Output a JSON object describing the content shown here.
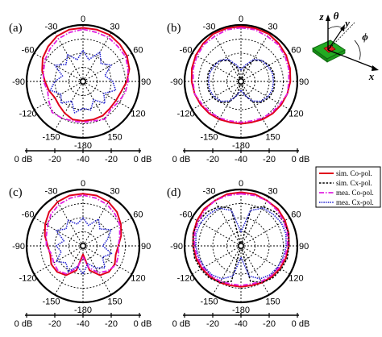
{
  "colors": {
    "sim_co": "#e0001b",
    "sim_cx": "#000000",
    "mea_co": "#e020e0",
    "mea_cx": "#2020d0",
    "chip_green": "#22aa22",
    "chip_red": "#dd2222"
  },
  "legend": {
    "items": [
      {
        "key": "sim_co",
        "label": "sim. Co-pol."
      },
      {
        "key": "sim_cx",
        "label": "sim. Cx-pol."
      },
      {
        "key": "mea_co",
        "label": "mea. Co-pol."
      },
      {
        "key": "mea_cx",
        "label": "mea. Cx-pol."
      }
    ]
  },
  "inset": {
    "z": "z",
    "theta": "θ",
    "y": "y",
    "phi": "ϕ",
    "x": "x"
  },
  "chart_data": [
    {
      "type": "polar",
      "panel_label": "(a)",
      "angle_labels": [
        "0",
        "30",
        "60",
        "90",
        "120",
        "150",
        "-180",
        "-150",
        "-120",
        "-90",
        "-60",
        "-30"
      ],
      "radial_labels": [
        "0 dB",
        "-20",
        "-40",
        "-20",
        "0 dB"
      ],
      "rlim": [
        -40,
        0
      ],
      "grid": true,
      "series": [
        {
          "key": "sim_co",
          "theta": [
            0,
            15,
            30,
            45,
            60,
            75,
            90,
            105,
            120,
            135,
            150,
            165,
            180,
            -165,
            -150,
            -135,
            -120,
            -105,
            -90,
            -75,
            -60,
            -45,
            -30,
            -15
          ],
          "r_db": [
            -2,
            -2,
            -2,
            -3,
            -4,
            -6,
            -9,
            -12,
            -13,
            -13,
            -12,
            -12,
            -12,
            -12,
            -14,
            -16,
            -17,
            -15,
            -13,
            -10,
            -7,
            -5,
            -3,
            -2
          ]
        },
        {
          "key": "mea_co",
          "theta": [
            0,
            15,
            30,
            45,
            60,
            75,
            90,
            105,
            120,
            135,
            150,
            165,
            180,
            -165,
            -150,
            -135,
            -120,
            -105,
            -90,
            -75,
            -60,
            -45,
            -30,
            -15
          ],
          "r_db": [
            -3,
            -4,
            -4,
            -5,
            -5,
            -7,
            -8,
            -9,
            -11,
            -12,
            -9,
            -11,
            -11,
            -11,
            -10,
            -9,
            -12,
            -14,
            -12,
            -11,
            -9,
            -7,
            -5,
            -4
          ]
        },
        {
          "key": "mea_cx",
          "theta": [
            0,
            15,
            30,
            45,
            60,
            75,
            90,
            105,
            120,
            135,
            150,
            165,
            180,
            -165,
            -150,
            -135,
            -120,
            -105,
            -90,
            -75,
            -60,
            -45,
            -30,
            -15
          ],
          "r_db": [
            -18,
            -24,
            -16,
            -22,
            -17,
            -24,
            -19,
            -16,
            -23,
            -18,
            -25,
            -19,
            -21,
            -17,
            -24,
            -18,
            -22,
            -16,
            -20,
            -25,
            -17,
            -23,
            -18,
            -24
          ]
        }
      ]
    },
    {
      "type": "polar",
      "panel_label": "(b)",
      "angle_labels": [
        "0",
        "30",
        "60",
        "90",
        "120",
        "150",
        "-180",
        "-150",
        "-120",
        "-90",
        "-60",
        "-30"
      ],
      "radial_labels": [
        "0 dB",
        "-20",
        "-40",
        "-20",
        "0 dB"
      ],
      "rlim": [
        -40,
        0
      ],
      "grid": true,
      "series": [
        {
          "key": "sim_co",
          "theta": [
            0,
            15,
            30,
            45,
            60,
            75,
            90,
            105,
            120,
            135,
            150,
            165,
            180,
            -165,
            -150,
            -135,
            -120,
            -105,
            -90,
            -75,
            -60,
            -45,
            -30,
            -15
          ],
          "r_db": [
            -1,
            -1,
            -1,
            -2,
            -3,
            -4,
            -5,
            -6,
            -7,
            -8,
            -9,
            -10,
            -10,
            -10,
            -9,
            -8,
            -7,
            -6,
            -5,
            -4,
            -3,
            -2,
            -1,
            -1
          ]
        },
        {
          "key": "sim_cx",
          "theta": [
            0,
            15,
            30,
            45,
            60,
            75,
            90,
            105,
            120,
            135,
            150,
            165,
            180,
            -165,
            -150,
            -135,
            -120,
            -105,
            -90,
            -75,
            -60,
            -45,
            -30,
            -15
          ],
          "r_db": [
            -40,
            -30,
            -23,
            -19,
            -17,
            -16,
            -16,
            -16,
            -17,
            -19,
            -23,
            -30,
            -40,
            -30,
            -23,
            -19,
            -17,
            -16,
            -16,
            -16,
            -17,
            -19,
            -23,
            -30
          ]
        },
        {
          "key": "mea_co",
          "theta": [
            0,
            15,
            30,
            45,
            60,
            75,
            90,
            105,
            120,
            135,
            150,
            165,
            180,
            -165,
            -150,
            -135,
            -120,
            -105,
            -90,
            -75,
            -60,
            -45,
            -30,
            -15
          ],
          "r_db": [
            -2,
            -2,
            -3,
            -3,
            -4,
            -5,
            -6,
            -6,
            -8,
            -9,
            -10,
            -11,
            -11,
            -11,
            -10,
            -9,
            -8,
            -6,
            -6,
            -5,
            -4,
            -3,
            -3,
            -2
          ]
        },
        {
          "key": "mea_cx",
          "theta": [
            0,
            15,
            30,
            45,
            60,
            75,
            90,
            105,
            120,
            135,
            150,
            165,
            180,
            -165,
            -150,
            -135,
            -120,
            -105,
            -90,
            -75,
            -60,
            -45,
            -30,
            -15
          ],
          "r_db": [
            -32,
            -28,
            -22,
            -19,
            -18,
            -17,
            -17,
            -17,
            -18,
            -20,
            -24,
            -30,
            -34,
            -30,
            -24,
            -20,
            -18,
            -17,
            -17,
            -17,
            -18,
            -19,
            -22,
            -28
          ]
        }
      ]
    },
    {
      "type": "polar",
      "panel_label": "(c)",
      "angle_labels": [
        "0",
        "30",
        "60",
        "90",
        "120",
        "150",
        "-180",
        "-150",
        "-120",
        "-90",
        "-60",
        "-30"
      ],
      "radial_labels": [
        "0 dB",
        "-20",
        "-40",
        "-20",
        "0 dB"
      ],
      "rlim": [
        -40,
        0
      ],
      "grid": true,
      "series": [
        {
          "key": "sim_co",
          "theta": [
            0,
            15,
            30,
            45,
            60,
            75,
            90,
            105,
            120,
            135,
            150,
            165,
            180,
            -165,
            -150,
            -135,
            -120,
            -105,
            -90,
            -75,
            -60,
            -45,
            -30,
            -15
          ],
          "r_db": [
            -3,
            -3,
            -4,
            -6,
            -9,
            -12,
            -15,
            -16,
            -14,
            -14,
            -16,
            -22,
            -34,
            -22,
            -16,
            -14,
            -14,
            -16,
            -15,
            -12,
            -9,
            -6,
            -4,
            -3
          ]
        },
        {
          "key": "mea_co",
          "theta": [
            0,
            15,
            30,
            45,
            60,
            75,
            90,
            105,
            120,
            135,
            150,
            165,
            180,
            -165,
            -150,
            -135,
            -120,
            -105,
            -90,
            -75,
            -60,
            -45,
            -30,
            -15
          ],
          "r_db": [
            -4,
            -5,
            -6,
            -8,
            -10,
            -13,
            -15,
            -14,
            -13,
            -15,
            -18,
            -24,
            -32,
            -24,
            -17,
            -15,
            -16,
            -17,
            -14,
            -13,
            -11,
            -8,
            -6,
            -5
          ]
        },
        {
          "key": "mea_cx",
          "theta": [
            0,
            15,
            30,
            45,
            60,
            75,
            90,
            105,
            120,
            135,
            150,
            165,
            180,
            -165,
            -150,
            -135,
            -120,
            -105,
            -90,
            -75,
            -60,
            -45,
            -30,
            -15
          ],
          "r_db": [
            -20,
            -25,
            -18,
            -23,
            -17,
            -22,
            -26,
            -19,
            -24,
            -18,
            -22,
            -27,
            -20,
            -25,
            -19,
            -23,
            -18,
            -24,
            -21,
            -26,
            -18,
            -23,
            -19,
            -24
          ]
        }
      ]
    },
    {
      "type": "polar",
      "panel_label": "(d)",
      "angle_labels": [
        "0",
        "30",
        "60",
        "90",
        "120",
        "150",
        "-180",
        "-150",
        "-120",
        "-90",
        "-60",
        "-30"
      ],
      "radial_labels": [
        "0 dB",
        "-20",
        "-40",
        "-20",
        "0 dB"
      ],
      "rlim": [
        -40,
        0
      ],
      "grid": true,
      "series": [
        {
          "key": "sim_co",
          "theta": [
            0,
            15,
            30,
            45,
            60,
            75,
            90,
            105,
            120,
            135,
            150,
            165,
            180,
            -165,
            -150,
            -135,
            -120,
            -105,
            -90,
            -75,
            -60,
            -45,
            -30,
            -15
          ],
          "r_db": [
            -2,
            -2,
            -3,
            -3,
            -4,
            -5,
            -6,
            -7,
            -8,
            -9,
            -10,
            -11,
            -11,
            -11,
            -10,
            -9,
            -8,
            -7,
            -6,
            -5,
            -4,
            -3,
            -3,
            -2
          ]
        },
        {
          "key": "sim_cx",
          "theta": [
            0,
            15,
            30,
            45,
            60,
            75,
            90,
            105,
            120,
            135,
            150,
            165,
            180,
            -165,
            -150,
            -135,
            -120,
            -105,
            -90,
            -75,
            -60,
            -45,
            -30,
            -15
          ],
          "r_db": [
            -40,
            -12,
            -8,
            -6,
            -5,
            -5,
            -6,
            -6,
            -7,
            -8,
            -10,
            -14,
            -40,
            -14,
            -10,
            -8,
            -7,
            -6,
            -6,
            -5,
            -5,
            -6,
            -8,
            -12
          ]
        },
        {
          "key": "mea_co",
          "theta": [
            0,
            15,
            30,
            45,
            60,
            75,
            90,
            105,
            120,
            135,
            150,
            165,
            180,
            -165,
            -150,
            -135,
            -120,
            -105,
            -90,
            -75,
            -60,
            -45,
            -30,
            -15
          ],
          "r_db": [
            -3,
            -3,
            -3,
            -4,
            -5,
            -6,
            -7,
            -8,
            -9,
            -10,
            -11,
            -12,
            -12,
            -12,
            -11,
            -10,
            -9,
            -8,
            -7,
            -6,
            -5,
            -4,
            -3,
            -3
          ]
        },
        {
          "key": "mea_cx",
          "theta": [
            0,
            15,
            30,
            45,
            60,
            75,
            90,
            105,
            120,
            135,
            150,
            165,
            180,
            -165,
            -150,
            -135,
            -120,
            -105,
            -90,
            -75,
            -60,
            -45,
            -30,
            -15
          ],
          "r_db": [
            -30,
            -14,
            -9,
            -8,
            -7,
            -7,
            -8,
            -9,
            -10,
            -11,
            -13,
            -18,
            -32,
            -18,
            -13,
            -11,
            -10,
            -9,
            -8,
            -7,
            -7,
            -8,
            -9,
            -14
          ]
        }
      ]
    }
  ]
}
